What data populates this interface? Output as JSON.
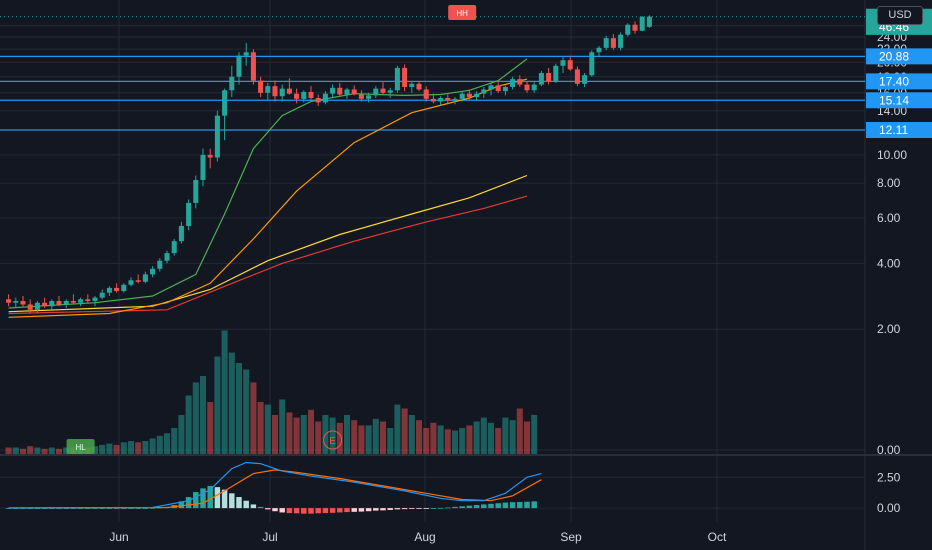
{
  "header": {
    "currency": "USD"
  },
  "colors": {
    "background": "#131722",
    "grid": "#232834",
    "up": "#26a69a",
    "down": "#ef5350",
    "hline": "#2196f3",
    "sma20": "#4caf50",
    "sma50": "#ff9800",
    "sma100": "#fdd835",
    "sma200": "#e53935",
    "macd": "#2196f3",
    "signal": "#ff6d00",
    "text": "#d1d4dc"
  },
  "chart_data": [
    {
      "type": "candlestick",
      "title": "",
      "ylim": [
        0,
        29.5
      ],
      "y_scale": "log1p",
      "y_ticks": [
        "0.00",
        "2.00",
        "4.00",
        "6.00",
        "8.00",
        "10.00",
        "14.00",
        "16.00",
        "18.00",
        "20.00",
        "22.00",
        "24.00",
        "26.00"
      ],
      "x_ticks": [
        "Jun",
        "Jul",
        "Aug",
        "Sep",
        "Oct"
      ],
      "price_labels": [
        {
          "text": "27.73",
          "value": 27.73,
          "color": "#26a69a",
          "dashed": true
        },
        {
          "text": "46:46",
          "value": 25.8,
          "color": "#26a69a"
        },
        {
          "text": "20.88",
          "value": 20.88,
          "color": "#2196f3",
          "line": true
        },
        {
          "text": "17.40",
          "value": 17.4,
          "color": "#2196f3",
          "line": true
        },
        {
          "text": "15.14",
          "value": 15.14,
          "color": "#2196f3",
          "line": true
        },
        {
          "text": "12.11",
          "value": 12.11,
          "color": "#2196f3",
          "line": true
        }
      ],
      "annotations": [
        {
          "text": "HH",
          "bar": 63,
          "value": 29.0,
          "color": "#ef5350"
        },
        {
          "text": "HL",
          "bar": 10,
          "value": 0.3,
          "color": "#4caf50"
        },
        {
          "text": "E",
          "bar": 45,
          "value": 0.45,
          "color": "#ef5350"
        }
      ],
      "ohlc": [
        [
          2.8,
          2.95,
          2.6,
          2.7
        ],
        [
          2.7,
          2.85,
          2.55,
          2.75
        ],
        [
          2.75,
          2.9,
          2.6,
          2.65
        ],
        [
          2.65,
          2.8,
          2.4,
          2.5
        ],
        [
          2.5,
          2.75,
          2.4,
          2.7
        ],
        [
          2.7,
          2.85,
          2.55,
          2.6
        ],
        [
          2.6,
          2.8,
          2.5,
          2.75
        ],
        [
          2.75,
          2.9,
          2.6,
          2.65
        ],
        [
          2.65,
          2.8,
          2.55,
          2.75
        ],
        [
          2.75,
          2.95,
          2.65,
          2.7
        ],
        [
          2.7,
          2.85,
          2.6,
          2.8
        ],
        [
          2.8,
          2.95,
          2.7,
          2.75
        ],
        [
          2.75,
          2.9,
          2.6,
          2.85
        ],
        [
          2.85,
          3.1,
          2.8,
          3.0
        ],
        [
          3.0,
          3.2,
          2.9,
          3.15
        ],
        [
          3.15,
          3.3,
          3.0,
          3.05
        ],
        [
          3.05,
          3.3,
          3.0,
          3.25
        ],
        [
          3.25,
          3.5,
          3.2,
          3.4
        ],
        [
          3.4,
          3.6,
          3.3,
          3.35
        ],
        [
          3.35,
          3.7,
          3.3,
          3.6
        ],
        [
          3.6,
          3.9,
          3.5,
          3.8
        ],
        [
          3.8,
          4.2,
          3.7,
          4.1
        ],
        [
          4.1,
          4.5,
          4.0,
          4.4
        ],
        [
          4.4,
          5.0,
          4.3,
          4.9
        ],
        [
          4.9,
          5.8,
          4.8,
          5.6
        ],
        [
          5.6,
          7.0,
          5.4,
          6.8
        ],
        [
          6.8,
          8.5,
          6.5,
          8.2
        ],
        [
          8.2,
          10.5,
          7.8,
          10.0
        ],
        [
          10.0,
          10.5,
          9.0,
          9.8
        ],
        [
          9.8,
          14.0,
          9.5,
          13.5
        ],
        [
          13.5,
          16.5,
          11.2,
          16.3
        ],
        [
          16.3,
          19.5,
          15.5,
          18.0
        ],
        [
          18.0,
          21.5,
          17.0,
          21.0
        ],
        [
          21.0,
          23.0,
          19.5,
          21.5
        ],
        [
          21.5,
          22.0,
          17.0,
          17.5
        ],
        [
          17.5,
          18.0,
          15.5,
          16.0
        ],
        [
          16.0,
          17.2,
          15.2,
          16.8
        ],
        [
          16.8,
          17.5,
          15.0,
          15.6
        ],
        [
          15.6,
          17.0,
          15.0,
          16.5
        ],
        [
          16.5,
          17.8,
          15.8,
          15.9
        ]
      ],
      "ohlc_cont": [
        [
          15.9,
          16.5,
          14.8,
          15.3
        ],
        [
          15.3,
          16.3,
          14.9,
          16.1
        ],
        [
          16.1,
          16.8,
          15.2,
          15.4
        ],
        [
          15.4,
          15.8,
          14.5,
          14.9
        ],
        [
          14.9,
          16.2,
          14.7,
          15.9
        ],
        [
          15.9,
          17.0,
          15.5,
          16.6
        ],
        [
          16.6,
          17.2,
          15.6,
          15.8
        ],
        [
          15.8,
          16.6,
          15.3,
          16.4
        ],
        [
          16.4,
          16.9,
          15.7,
          15.8
        ],
        [
          15.8,
          16.3,
          15.0,
          15.3
        ],
        [
          15.3,
          16.0,
          14.9,
          15.7
        ],
        [
          15.7,
          16.8,
          15.4,
          16.5
        ],
        [
          16.5,
          17.3,
          15.8,
          16.0
        ],
        [
          16.0,
          16.6,
          15.4,
          16.3
        ],
        [
          16.3,
          19.5,
          16.0,
          19.2
        ],
        [
          19.2,
          19.7,
          16.2,
          16.7
        ],
        [
          16.7,
          17.3,
          16.0,
          17.1
        ],
        [
          17.1,
          17.4,
          16.2,
          16.4
        ],
        [
          16.4,
          16.8,
          15.0,
          15.3
        ],
        [
          15.3,
          15.9,
          14.8,
          15.0
        ],
        [
          15.0,
          15.6,
          14.6,
          15.4
        ],
        [
          15.4,
          15.8,
          14.8,
          15.1
        ],
        [
          15.1,
          15.5,
          14.7,
          15.3
        ],
        [
          15.3,
          16.2,
          15.0,
          15.9
        ],
        [
          15.9,
          16.4,
          15.2,
          15.5
        ],
        [
          15.5,
          16.2,
          15.1,
          15.9
        ],
        [
          15.9,
          16.7,
          15.4,
          16.4
        ],
        [
          16.4,
          17.2,
          15.7,
          16.9
        ],
        [
          16.9,
          17.3,
          16.0,
          16.2
        ],
        [
          16.2,
          16.9,
          15.7,
          16.7
        ],
        [
          16.7,
          18.0,
          16.4,
          17.7
        ],
        [
          17.7,
          18.2,
          16.7,
          17.0
        ]
      ],
      "ohlc_tail": [
        [
          17.0,
          17.4,
          16.0,
          16.3
        ],
        [
          16.3,
          17.3,
          16.0,
          17.0
        ],
        [
          17.0,
          18.8,
          16.8,
          18.5
        ],
        [
          18.5,
          19.2,
          17.0,
          17.4
        ],
        [
          17.4,
          19.8,
          17.2,
          19.5
        ],
        [
          19.5,
          20.8,
          18.5,
          20.3
        ],
        [
          20.3,
          21.0,
          18.8,
          19.0
        ],
        [
          19.0,
          19.4,
          16.8,
          17.1
        ],
        [
          17.1,
          18.5,
          16.7,
          18.2
        ],
        [
          18.2,
          21.8,
          18.0,
          21.5
        ],
        [
          21.5,
          22.5,
          20.8,
          22.2
        ],
        [
          22.2,
          24.2,
          21.8,
          23.8
        ],
        [
          23.8,
          24.5,
          21.9,
          22.2
        ],
        [
          22.2,
          24.8,
          21.8,
          24.4
        ],
        [
          24.4,
          26.5,
          24.1,
          26.2
        ],
        [
          26.2,
          26.8,
          24.6,
          25.1
        ],
        [
          25.1,
          27.9,
          25.0,
          27.7
        ],
        [
          25.8,
          28.0,
          25.6,
          27.73
        ]
      ],
      "sma20_anchor": [
        [
          0,
          2.55
        ],
        [
          12,
          2.7
        ],
        [
          20,
          2.9
        ],
        [
          26,
          3.6
        ],
        [
          30,
          6.2
        ],
        [
          34,
          10.5
        ],
        [
          38,
          13.5
        ],
        [
          42,
          15.0
        ],
        [
          48,
          15.9
        ],
        [
          55,
          15.7
        ],
        [
          60,
          15.8
        ],
        [
          64,
          16.3
        ],
        [
          68,
          17.5
        ],
        [
          72,
          20.5
        ]
      ],
      "sma50_anchor": [
        [
          0,
          2.3
        ],
        [
          14,
          2.4
        ],
        [
          22,
          2.7
        ],
        [
          28,
          3.3
        ],
        [
          34,
          5.0
        ],
        [
          40,
          7.5
        ],
        [
          48,
          11.0
        ],
        [
          56,
          13.8
        ],
        [
          64,
          15.4
        ],
        [
          68,
          16.8
        ],
        [
          72,
          17.7
        ]
      ],
      "sma100_anchor": [
        [
          0,
          2.45
        ],
        [
          20,
          2.6
        ],
        [
          28,
          3.1
        ],
        [
          36,
          4.1
        ],
        [
          46,
          5.2
        ],
        [
          56,
          6.2
        ],
        [
          64,
          7.1
        ],
        [
          72,
          8.5
        ]
      ],
      "sma200_anchor": [
        [
          0,
          2.4
        ],
        [
          22,
          2.5
        ],
        [
          30,
          3.2
        ],
        [
          38,
          4.0
        ],
        [
          48,
          4.9
        ],
        [
          58,
          5.8
        ],
        [
          66,
          6.5
        ],
        [
          72,
          7.2
        ]
      ],
      "volume": [
        0.05,
        0.05,
        0.04,
        0.06,
        0.05,
        0.04,
        0.05,
        0.04,
        0.05,
        0.05,
        0.06,
        0.05,
        0.06,
        0.07,
        0.08,
        0.07,
        0.09,
        0.1,
        0.09,
        0.1,
        0.12,
        0.14,
        0.16,
        0.2,
        0.3,
        0.45,
        0.55,
        0.6,
        0.4,
        0.75,
        0.95,
        0.78,
        0.7,
        0.65,
        0.55,
        0.4,
        0.38,
        0.3,
        0.42,
        0.32,
        0.28,
        0.3,
        0.34,
        0.25,
        0.3,
        0.28,
        0.24,
        0.3,
        0.26,
        0.22,
        0.22,
        0.27,
        0.25,
        0.2,
        0.38,
        0.35,
        0.3,
        0.26,
        0.2,
        0.24,
        0.22,
        0.19,
        0.18,
        0.2,
        0.22,
        0.25,
        0.28,
        0.24,
        0.2,
        0.28,
        0.26,
        0.35,
        0.25,
        0.3
      ],
      "volume_ylim": [
        0,
        1
      ]
    },
    {
      "type": "macd",
      "ylim": [
        -0.8,
        3.9
      ],
      "y_ticks": [
        "0.00",
        "2.50"
      ],
      "macd_anchor": [
        [
          0,
          0.02
        ],
        [
          20,
          0.05
        ],
        [
          25,
          0.6
        ],
        [
          28,
          1.5
        ],
        [
          31,
          3.2
        ],
        [
          33,
          3.7
        ],
        [
          35,
          3.6
        ],
        [
          38,
          3.0
        ],
        [
          42,
          2.6
        ],
        [
          48,
          2.1
        ],
        [
          55,
          1.4
        ],
        [
          60,
          0.8
        ],
        [
          63,
          0.6
        ],
        [
          66,
          0.6
        ],
        [
          69,
          1.2
        ],
        [
          72,
          2.5
        ],
        [
          74,
          2.8
        ]
      ],
      "signal_anchor": [
        [
          0,
          0.01
        ],
        [
          22,
          0.05
        ],
        [
          27,
          0.4
        ],
        [
          30,
          1.4
        ],
        [
          34,
          2.8
        ],
        [
          37,
          3.1
        ],
        [
          40,
          2.9
        ],
        [
          46,
          2.4
        ],
        [
          52,
          1.8
        ],
        [
          58,
          1.2
        ],
        [
          63,
          0.7
        ],
        [
          67,
          0.6
        ],
        [
          70,
          1.0
        ],
        [
          74,
          2.3
        ]
      ],
      "hist": [
        0,
        0,
        0,
        0,
        0,
        0,
        0,
        0,
        0,
        0,
        0,
        0,
        0,
        0,
        0,
        0,
        0,
        0,
        0,
        0,
        0.02,
        0.05,
        0.1,
        0.25,
        0.55,
        0.9,
        1.3,
        1.6,
        1.8,
        1.7,
        1.5,
        1.2,
        0.9,
        0.6,
        0.3,
        0.1,
        -0.1,
        -0.25,
        -0.35,
        -0.4,
        -0.42,
        -0.45,
        -0.45,
        -0.42,
        -0.4,
        -0.38,
        -0.35,
        -0.32,
        -0.3,
        -0.28,
        -0.25,
        -0.2,
        -0.18,
        -0.15,
        -0.1,
        -0.08,
        -0.05,
        -0.03,
        -0.02,
        0.0,
        0.02,
        0.05,
        0.1,
        0.15,
        0.2,
        0.25,
        0.3,
        0.35,
        0.4,
        0.45,
        0.48,
        0.5,
        0.52,
        0.55
      ]
    }
  ]
}
